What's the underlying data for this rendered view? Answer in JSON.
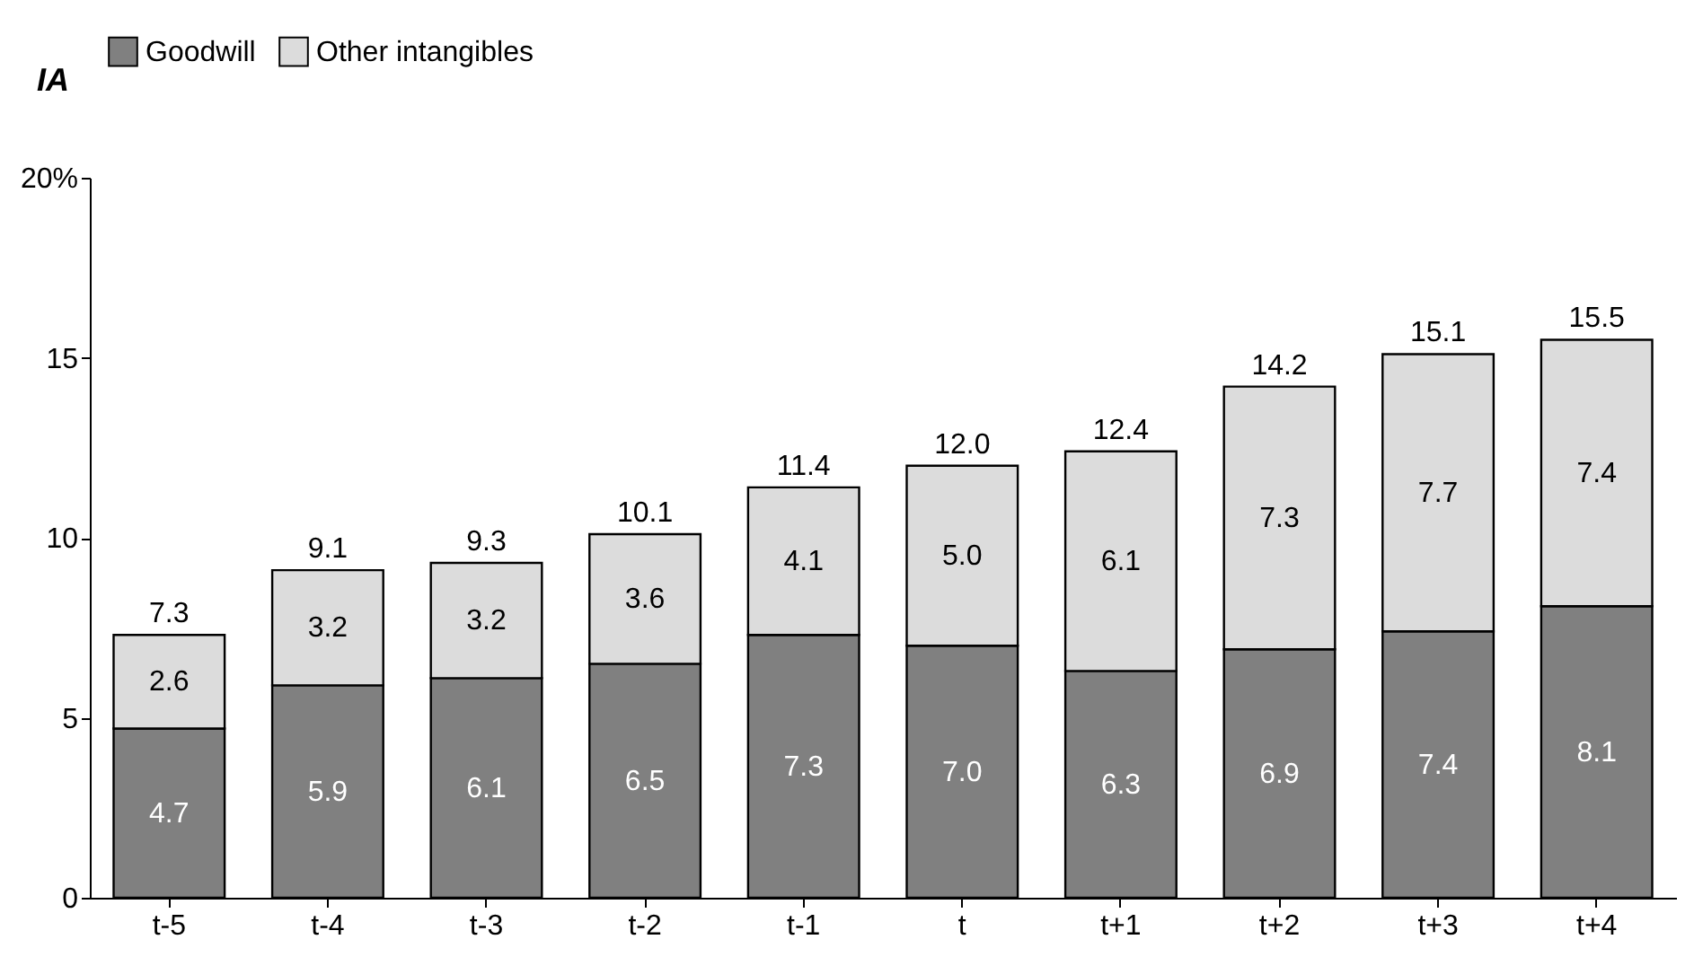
{
  "chart_data": {
    "type": "bar",
    "stacked": true,
    "ylabel": "IA",
    "legend": "top",
    "categories": [
      "t-5",
      "t-4",
      "t-3",
      "t-2",
      "t-1",
      "t",
      "t+1",
      "t+2",
      "t+3",
      "t+4"
    ],
    "series": [
      {
        "name": "Goodwill",
        "color": "#808080",
        "values": [
          4.7,
          5.9,
          6.1,
          6.5,
          7.3,
          7.0,
          6.3,
          6.9,
          7.4,
          8.1
        ],
        "value_labels": [
          "4.7",
          "5.9",
          "6.1",
          "6.5",
          "7.3",
          "7.0",
          "6.3",
          "6.9",
          "7.4",
          "8.1"
        ]
      },
      {
        "name": "Other intangibles",
        "color": "#dcdcdc",
        "values": [
          2.6,
          3.2,
          3.2,
          3.6,
          4.1,
          5.0,
          6.1,
          7.3,
          7.7,
          7.4
        ],
        "value_labels": [
          "2.6",
          "3.2",
          "3.2",
          "3.6",
          "4.1",
          "5.0",
          "6.1",
          "7.3",
          "7.7",
          "7.4"
        ]
      }
    ],
    "totals": [
      "7.3",
      "9.1",
      "9.3",
      "10.1",
      "11.4",
      "12.0",
      "12.4",
      "14.2",
      "15.1",
      "15.5"
    ],
    "ylim": [
      0,
      20
    ],
    "yticks": [
      0,
      5,
      10,
      15,
      {
        "value": 20,
        "label": "20%"
      }
    ],
    "grid": false
  }
}
